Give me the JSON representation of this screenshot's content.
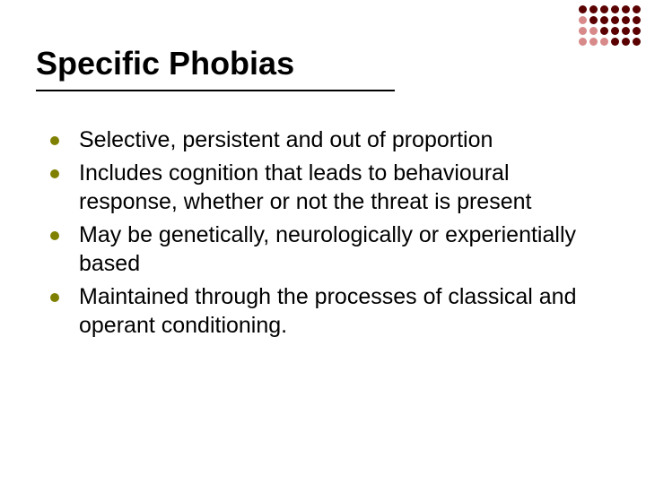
{
  "title": "Specific Phobias",
  "bullet_color": "#808000",
  "bullets": [
    "Selective, persistent and out of proportion",
    "Includes cognition that leads to behavioural response, whether or not the threat is present",
    "May be genetically, neurologically or experientially based",
    "Maintained through the processes of classical and operant conditioning."
  ],
  "corner": {
    "rows": 4,
    "cols": 6,
    "dark": "#5a0000",
    "light": "#d88a8a",
    "pattern": [
      [
        1,
        1,
        1,
        1,
        1,
        1
      ],
      [
        0,
        1,
        1,
        1,
        1,
        1
      ],
      [
        0,
        0,
        1,
        1,
        1,
        1
      ],
      [
        0,
        0,
        0,
        1,
        1,
        1
      ]
    ]
  }
}
